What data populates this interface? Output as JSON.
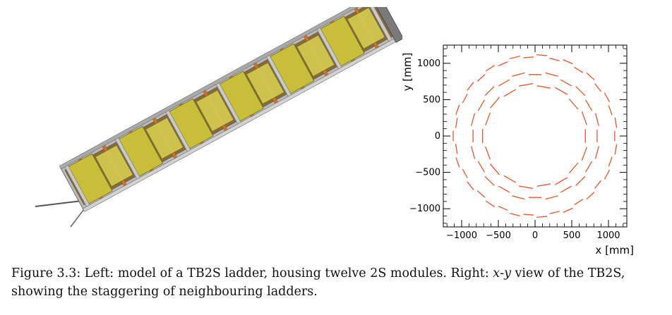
{
  "caption": {
    "label": "Figure 3.3:",
    "part1": " Left: model of a TB2S ladder, housing twelve 2S modules. Right: ",
    "var_x": "x",
    "dash": "-",
    "var_y": "y",
    "part2": " view of the TB2S, showing the staggering of neighbouring ladders."
  },
  "ladder_model": {
    "module_count": 12,
    "module_color": "#c8be3a",
    "frame_color": "#9a9a9a",
    "strut_color": "#c8742c"
  },
  "chart_data": {
    "type": "scatter",
    "title": "",
    "xlabel": "x [mm]",
    "ylabel": "y [mm]",
    "xlim": [
      -1250,
      1250
    ],
    "ylim": [
      -1250,
      1250
    ],
    "xticks": [
      -1000,
      -500,
      0,
      500,
      1000
    ],
    "yticks": [
      -1000,
      -500,
      0,
      500,
      1000
    ],
    "xtick_labels": [
      "−1000",
      "−500",
      "0",
      "500",
      "1000"
    ],
    "ytick_labels": [
      "−1000",
      "−500",
      "0",
      "500",
      "1000"
    ],
    "grid": false,
    "line_style": "dashed",
    "series_color": "#e8552a",
    "rings": [
      {
        "radius_inner": 685,
        "radius_outer": 715,
        "ladders": 18
      },
      {
        "radius_inner": 845,
        "radius_outer": 875,
        "ladders": 24
      },
      {
        "radius_inner": 1085,
        "radius_outer": 1115,
        "ladders": 38
      }
    ]
  }
}
